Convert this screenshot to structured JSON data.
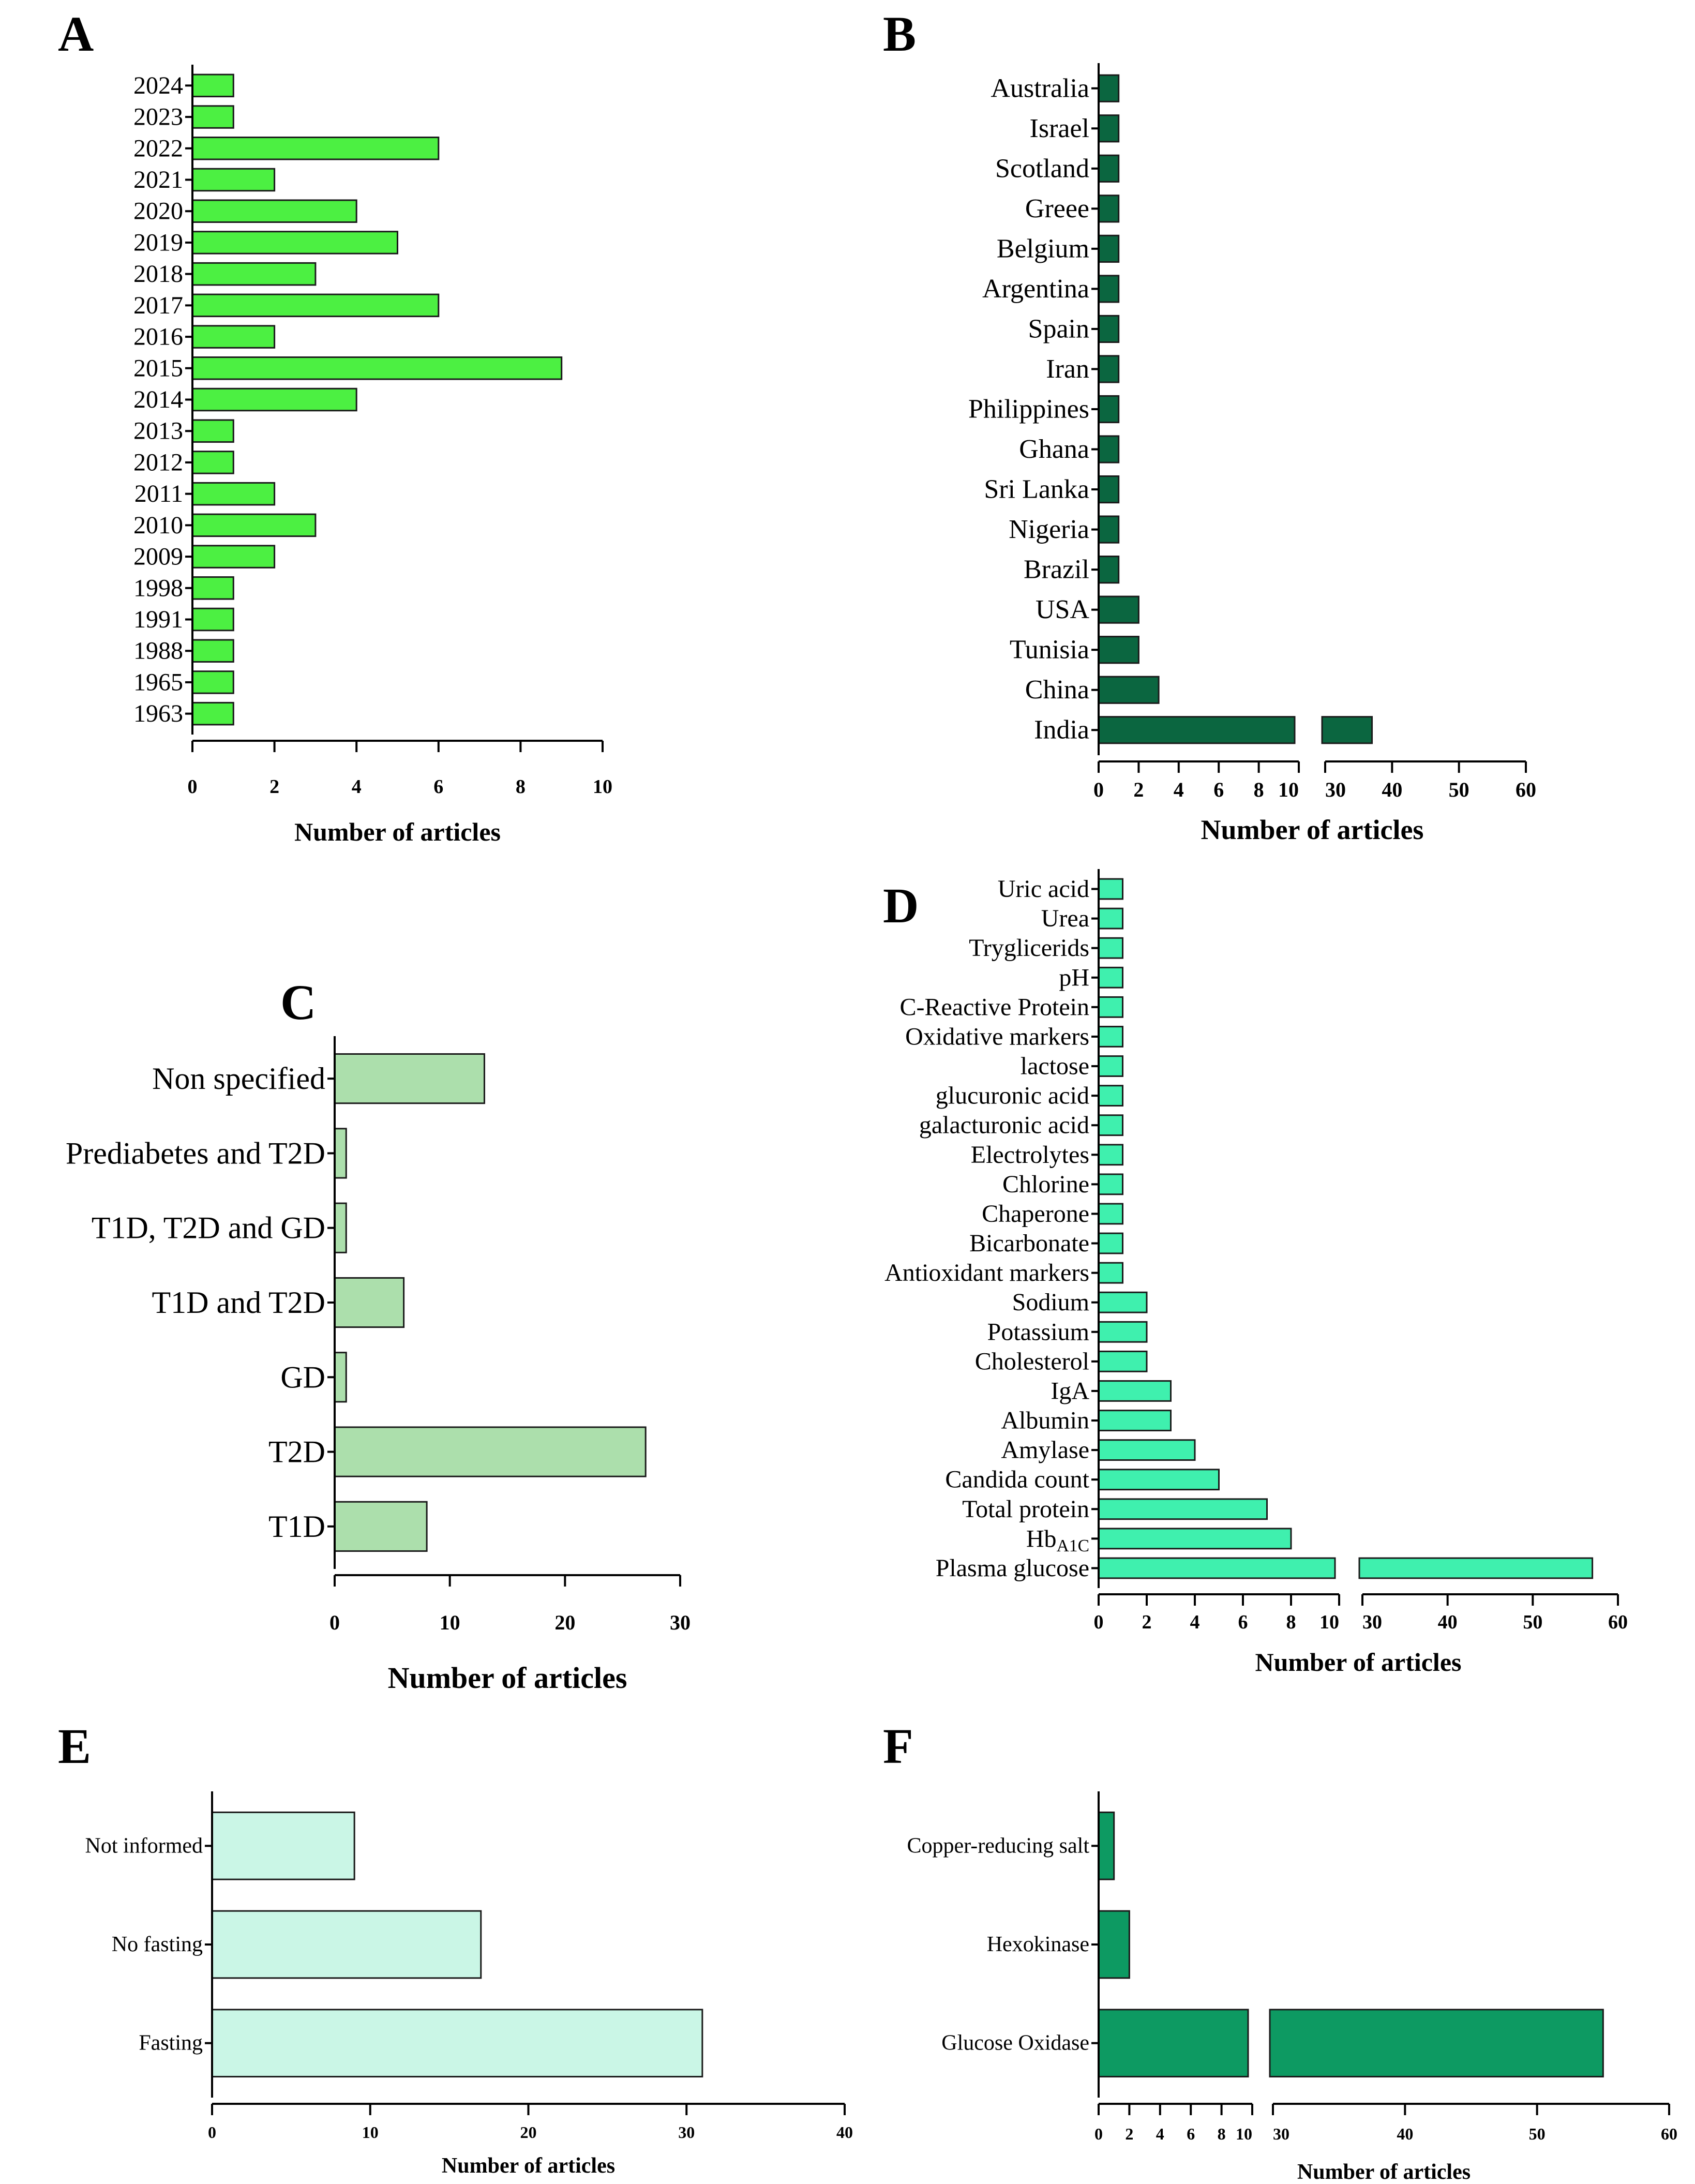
{
  "chart_data": [
    {
      "panel": "A",
      "type": "bar",
      "orientation": "horizontal",
      "categories": [
        "2024",
        "2023",
        "2022",
        "2021",
        "2020",
        "2019",
        "2018",
        "2017",
        "2016",
        "2015",
        "2014",
        "2013",
        "2012",
        "2011",
        "2010",
        "2009",
        "1998",
        "1991",
        "1988",
        "1965",
        "1963"
      ],
      "values": [
        1,
        1,
        6,
        2,
        4,
        5,
        3,
        6,
        2,
        9,
        4,
        1,
        1,
        2,
        3,
        2,
        1,
        1,
        1,
        1,
        1
      ],
      "xlabel": "Number of articles",
      "xlim": [
        0,
        10
      ],
      "xticks": [
        "0",
        "2",
        "4",
        "6",
        "8",
        "10"
      ],
      "color": "#4cf042"
    },
    {
      "panel": "B",
      "type": "bar",
      "orientation": "horizontal",
      "categories": [
        "Australia",
        "Israel",
        "Scotland",
        "Greee",
        "Belgium",
        "Argentina",
        "Spain",
        "Iran",
        "Philippines",
        "Ghana",
        "Sri Lanka",
        "Nigeria",
        "Brazil",
        "USA",
        "Tunisia",
        "China",
        "India"
      ],
      "values": [
        1,
        1,
        1,
        1,
        1,
        1,
        1,
        1,
        1,
        1,
        1,
        1,
        1,
        2,
        2,
        3,
        37
      ],
      "xlabel": "Number of articles",
      "axis_break": [
        10,
        30
      ],
      "xlim": [
        0,
        60
      ],
      "xticks_low": [
        "0",
        "2",
        "4",
        "6",
        "8",
        "10"
      ],
      "xticks_high": [
        "30",
        "40",
        "50",
        "60"
      ],
      "color": "#0b6640"
    },
    {
      "panel": "C",
      "type": "bar",
      "orientation": "horizontal",
      "categories": [
        "Non specified",
        "Prediabetes and T2D",
        "T1D, T2D and GD",
        "T1D and T2D",
        "GD",
        "T2D",
        "T1D"
      ],
      "values": [
        13,
        1,
        1,
        6,
        1,
        27,
        8
      ],
      "xlabel": "Number of articles",
      "xlim": [
        0,
        30
      ],
      "xticks": [
        "0",
        "10",
        "20",
        "30"
      ],
      "color": "#acdfac"
    },
    {
      "panel": "D",
      "type": "bar",
      "orientation": "horizontal",
      "categories": [
        "Uric acid",
        "Urea",
        "Tryglicerids",
        "pH",
        "C-Reactive Protein",
        "Oxidative markers",
        "lactose",
        "glucuronic acid",
        "galacturonic acid",
        "Electrolytes",
        "Chlorine",
        "Chaperone",
        "Bicarbonate",
        "Antioxidant markers",
        "Sodium",
        "Potassium",
        "Cholesterol",
        "IgA",
        "Albumin",
        "Amylase",
        "Candida count",
        "Total protein",
        "HbA1C",
        "Plasma glucose"
      ],
      "values": [
        1,
        1,
        1,
        1,
        1,
        1,
        1,
        1,
        1,
        1,
        1,
        1,
        1,
        1,
        2,
        2,
        2,
        3,
        3,
        4,
        5,
        7,
        8,
        57
      ],
      "hba1c_label": {
        "main": "Hb",
        "sub": "A1C"
      },
      "xlabel": "Number of articles",
      "axis_break": [
        10,
        30
      ],
      "xlim": [
        0,
        60
      ],
      "xticks_low": [
        "0",
        "2",
        "4",
        "6",
        "8",
        "10"
      ],
      "xticks_high": [
        "30",
        "40",
        "50",
        "60"
      ],
      "color": "#3ff0ae"
    },
    {
      "panel": "E",
      "type": "bar",
      "orientation": "horizontal",
      "categories": [
        "Not informed",
        "No fasting",
        "Fasting"
      ],
      "values": [
        9,
        17,
        31
      ],
      "xlabel": "Number of articles",
      "xlim": [
        0,
        40
      ],
      "xticks": [
        "0",
        "10",
        "20",
        "30",
        "40"
      ],
      "color": "#caf6e6"
    },
    {
      "panel": "F",
      "type": "bar",
      "orientation": "horizontal",
      "categories": [
        "Copper-reducing salt",
        "Hexokinase",
        "Glucose Oxidase"
      ],
      "values": [
        1,
        2,
        55
      ],
      "xlabel": "Number of articles",
      "axis_break": [
        10,
        30
      ],
      "xlim": [
        0,
        60
      ],
      "xticks_low": [
        "0",
        "2",
        "4",
        "6",
        "8",
        "10"
      ],
      "xticks_high": [
        "30",
        "40",
        "50",
        "60"
      ],
      "color": "#0d9a62"
    }
  ]
}
